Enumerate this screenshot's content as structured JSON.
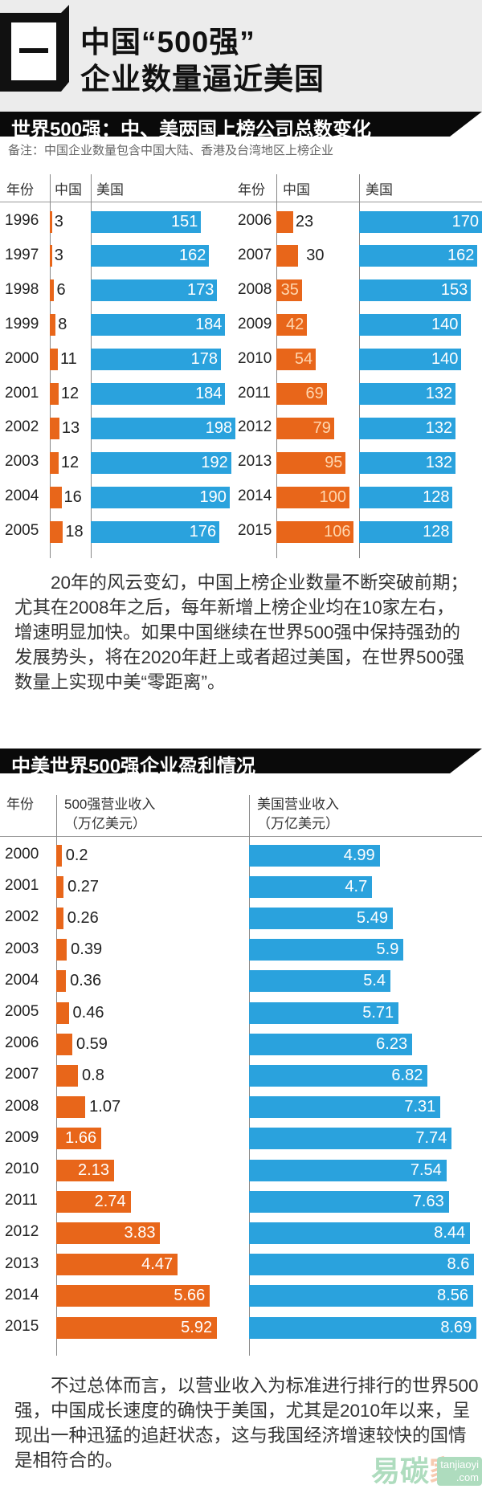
{
  "hero": {
    "icon_glyph": "一",
    "title_line1": "中国“500强”",
    "title_line2": "企业数量逼近美国"
  },
  "section1": {
    "title": "世界500强：中、美两国上榜公司总数变化",
    "note": "备注：中国企业数量包含中国大陆、香港及台湾地区上榜企业",
    "headers": {
      "year": "年份",
      "china": "中国",
      "usa": "美国"
    },
    "paragraph": [
      "20年的风云变幻，中国上榜企业数量不断突破前期；",
      "尤其在2008年之后，每年新增上榜企业均在10家左右，",
      "增速明显加快。如果中国继续在世界500强中保持强劲的",
      "发展势头，将在2020年赶上或者超过美国，在世界500强",
      "数量上实现中美“零距离”。"
    ]
  },
  "section2": {
    "title": "中美世界500强企业盈利情况",
    "headers": {
      "year": "年份",
      "china_line1": "500强营业收入",
      "china_line2": "（万亿美元）",
      "usa_line1": "美国营业收入",
      "usa_line2": "（万亿美元）"
    },
    "paragraph": [
      "不过总体而言，以营业收入为标准进行排行的世界500",
      "强，中国成长速度的确快于美国，尤其是2010年以来，呈",
      "现出一种迅猛的追赶状态，这与我国经济增速较快的国情",
      "是相符合的。"
    ]
  },
  "watermark": {
    "text": "易碳家",
    "site1": "tanjiaoyi",
    ".com": ".com"
  },
  "colors": {
    "china": "#e8661a",
    "usa": "#2aa2dd"
  },
  "chart_data": [
    {
      "type": "bar",
      "title": "世界500强：中、美两国上榜公司总数变化",
      "categories": [
        "1996",
        "1997",
        "1998",
        "1999",
        "2000",
        "2001",
        "2002",
        "2003",
        "2004",
        "2005",
        "2006",
        "2007",
        "2008",
        "2009",
        "2010",
        "2011",
        "2012",
        "2013",
        "2014",
        "2015"
      ],
      "series": [
        {
          "name": "中国",
          "values": [
            3,
            3,
            6,
            8,
            11,
            12,
            13,
            12,
            16,
            18,
            23,
            30,
            35,
            42,
            54,
            69,
            79,
            95,
            100,
            106
          ]
        },
        {
          "name": "美国",
          "values": [
            151,
            162,
            173,
            184,
            178,
            184,
            198,
            192,
            190,
            176,
            170,
            162,
            153,
            140,
            140,
            132,
            132,
            132,
            128,
            128
          ]
        }
      ]
    },
    {
      "type": "bar",
      "title": "中美世界500强企业盈利情况",
      "categories": [
        "2000",
        "2001",
        "2002",
        "2003",
        "2004",
        "2005",
        "2006",
        "2007",
        "2008",
        "2009",
        "2010",
        "2011",
        "2012",
        "2013",
        "2014",
        "2015"
      ],
      "series": [
        {
          "name": "500强营业收入（万亿美元）",
          "values": [
            0.2,
            0.27,
            0.26,
            0.39,
            0.36,
            0.46,
            0.59,
            0.8,
            1.07,
            1.66,
            2.13,
            2.74,
            3.83,
            4.47,
            5.66,
            5.92
          ]
        },
        {
          "name": "美国营业收入（万亿美元）",
          "values": [
            4.99,
            4.7,
            5.49,
            5.9,
            5.4,
            5.71,
            6.23,
            6.82,
            7.31,
            7.74,
            7.54,
            7.63,
            8.44,
            8.6,
            8.56,
            8.69
          ]
        }
      ]
    }
  ]
}
